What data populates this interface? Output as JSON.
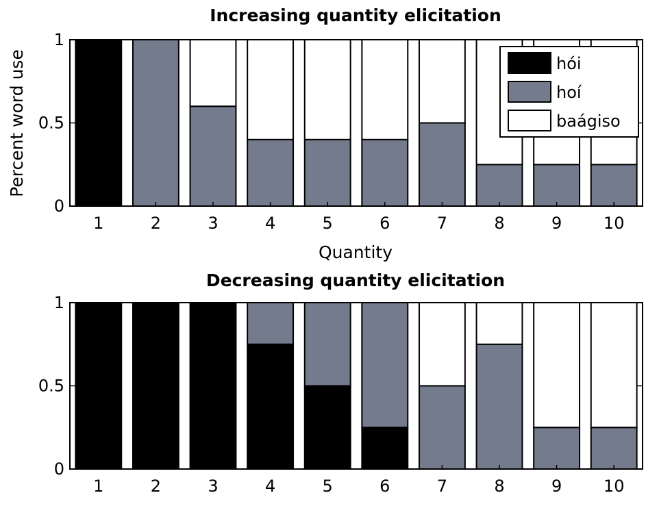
{
  "chart_data": [
    {
      "type": "bar",
      "stacked": true,
      "title": "Increasing quantity elicitation",
      "xlabel": "Quantity",
      "ylabel": "Percent word use",
      "categories": [
        "1",
        "2",
        "3",
        "4",
        "5",
        "6",
        "7",
        "8",
        "9",
        "10"
      ],
      "ylim": [
        0,
        1
      ],
      "yticks": [
        "0",
        "0.5",
        "1"
      ],
      "series": [
        {
          "name": "hói",
          "color": "#000000",
          "values": [
            1,
            0,
            0,
            0,
            0,
            0,
            0,
            0,
            0,
            0
          ]
        },
        {
          "name": "hoí",
          "color": "#737b8c",
          "values": [
            0,
            1,
            0.6,
            0.4,
            0.4,
            0.4,
            0.5,
            0.25,
            0.25,
            0.25
          ]
        },
        {
          "name": "baágiso",
          "color": "#ffffff",
          "values": [
            0,
            0,
            0.4,
            0.6,
            0.6,
            0.6,
            0.5,
            0.75,
            0.75,
            0.75
          ]
        }
      ],
      "legend": {
        "position": "top-right",
        "entries": [
          "hói",
          "hoí",
          "baágiso"
        ]
      }
    },
    {
      "type": "bar",
      "stacked": true,
      "title": "Decreasing quantity elicitation",
      "xlabel": "",
      "ylabel": "",
      "categories": [
        "1",
        "2",
        "3",
        "4",
        "5",
        "6",
        "7",
        "8",
        "9",
        "10"
      ],
      "ylim": [
        0,
        1
      ],
      "yticks": [
        "0",
        "0.5",
        "1"
      ],
      "series": [
        {
          "name": "hói",
          "color": "#000000",
          "values": [
            1,
            1,
            1,
            0.75,
            0.5,
            0.25,
            0,
            0,
            0,
            0
          ]
        },
        {
          "name": "hoí",
          "color": "#737b8c",
          "values": [
            0,
            0,
            0,
            0.25,
            0.5,
            0.75,
            0.5,
            0.75,
            0.25,
            0.25
          ]
        },
        {
          "name": "baágiso",
          "color": "#ffffff",
          "values": [
            0,
            0,
            0,
            0,
            0,
            0,
            0.5,
            0.25,
            0.75,
            0.75
          ]
        }
      ]
    }
  ]
}
